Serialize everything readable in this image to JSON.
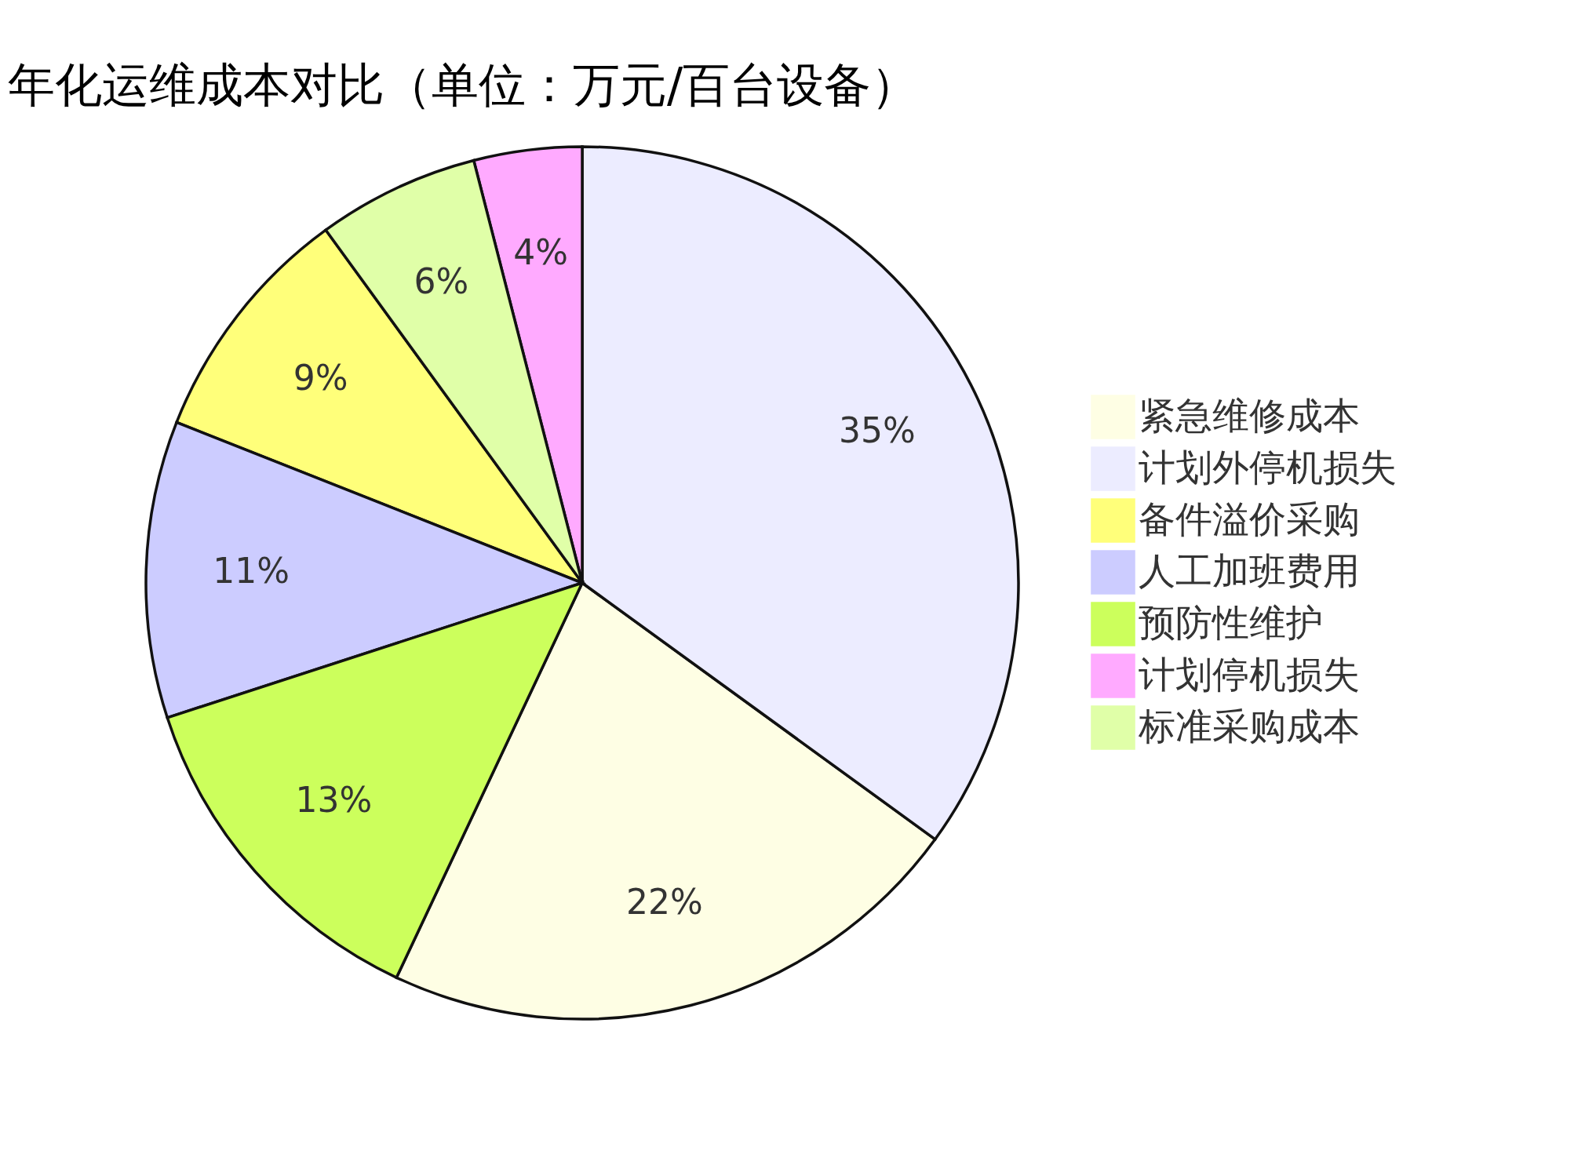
{
  "chart_data": {
    "type": "pie",
    "title": "年化运维成本对比（单位：万元/百台设备）",
    "categories": [
      "紧急维修成本",
      "计划外停机损失",
      "备件溢价采购",
      "人工加班费用",
      "预防性维护",
      "计划停机损失",
      "标准采购成本"
    ],
    "values": [
      22,
      35,
      9,
      11,
      13,
      4,
      6
    ],
    "value_labels": [
      "22%",
      "35%",
      "9%",
      "11%",
      "13%",
      "4%",
      "6%"
    ],
    "colors": [
      "#fefee4",
      "#ececff",
      "#ffff7a",
      "#ccccff",
      "#ccff5c",
      "#ffaaff",
      "#e0ffa8"
    ],
    "legend": "right"
  }
}
